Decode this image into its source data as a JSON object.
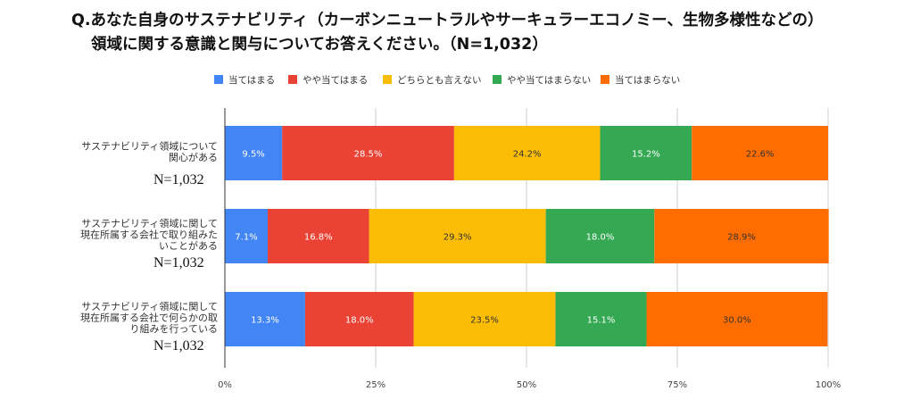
{
  "title": {
    "line1": "Q.あなた自身のサステナビリティ（カーボンニュートラルやサーキュラーエコノミー、生物多様性などの）",
    "line2": "領域に関する意識と関与についてお答えください。（N=1,032）"
  },
  "chart_data": {
    "type": "bar",
    "orientation": "horizontal",
    "stacked": "percent",
    "title": "Q.あなた自身のサステナビリティ（カーボンニュートラルやサーキュラーエコノミー、生物多様性などの）領域に関する意識と関与についてお答えください。（N=1,032）",
    "categories": [
      [
        "サステナビリティ領域について",
        "関心がある"
      ],
      [
        "サステナビリティ領域に関して",
        "現在所属する会社で取り組みた",
        "いことがある"
      ],
      [
        "サステナビリティ領域に関して",
        "現在所属する会社で何らかの取",
        "り組みを行っている"
      ]
    ],
    "n_labels": [
      "N=1,032",
      "N=1,032",
      "N=1,032"
    ],
    "series": [
      {
        "name": "当てはまる",
        "color": "#4285f4",
        "values": [
          9.5,
          7.1,
          13.3
        ],
        "labels": [
          "9.5%",
          "7.1%",
          "13.3%"
        ],
        "label_color": "#ffffff"
      },
      {
        "name": "やや当てはまる",
        "color": "#ea4335",
        "values": [
          28.5,
          16.8,
          18.0
        ],
        "labels": [
          "28.5%",
          "16.8%",
          "18.0%"
        ],
        "label_color": "#ffffff"
      },
      {
        "name": "どちらとも言えない",
        "color": "#fbbc04",
        "values": [
          24.2,
          29.3,
          23.5
        ],
        "labels": [
          "24.2%",
          "29.3%",
          "23.5%"
        ],
        "label_color": "#333333"
      },
      {
        "name": "やや当てはまらない",
        "color": "#34a853",
        "values": [
          15.2,
          18.0,
          15.1
        ],
        "labels": [
          "15.2%",
          "18.0%",
          "15.1%"
        ],
        "label_color": "#ffffff"
      },
      {
        "name": "当てはまらない",
        "color": "#ff6d01",
        "values": [
          22.6,
          28.9,
          30.0
        ],
        "labels": [
          "22.6%",
          "28.9%",
          "30.0%"
        ],
        "label_color": "#333333"
      }
    ],
    "xlim": [
      0,
      100
    ],
    "xticks": [
      0,
      25,
      50,
      75,
      100
    ],
    "xtick_labels": [
      "0%",
      "25%",
      "50%",
      "75%",
      "100%"
    ],
    "grid": true,
    "legend": "top"
  }
}
